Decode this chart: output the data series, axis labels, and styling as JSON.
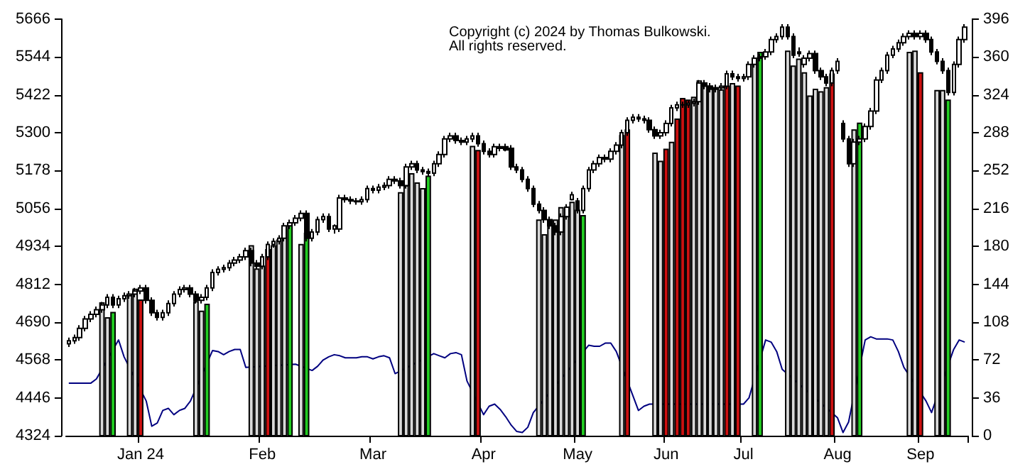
{
  "chart_data": {
    "type": "candlestick",
    "color": "#000000",
    "annotations": [
      "Copyright (c) 2024 by Thomas Bulkowski. All rights reserved."
    ],
    "categories": [
      null,
      null,
      null,
      null,
      null,
      null,
      null,
      null,
      null,
      null,
      null,
      null,
      null,
      "Jan 24",
      null,
      null,
      null,
      null,
      null,
      null,
      null,
      null,
      null,
      null,
      null,
      null,
      null,
      null,
      null,
      null,
      null,
      null,
      null,
      null,
      null,
      "Feb",
      null,
      null,
      null,
      null,
      null,
      null,
      null,
      null,
      null,
      null,
      null,
      null,
      null,
      null,
      null,
      null,
      null,
      null,
      null,
      "Mar",
      null,
      null,
      null,
      null,
      null,
      null,
      null,
      null,
      null,
      null,
      null,
      null,
      null,
      null,
      null,
      null,
      null,
      null,
      null,
      "Apr",
      null,
      null,
      null,
      null,
      null,
      null,
      null,
      null,
      null,
      null,
      null,
      null,
      null,
      null,
      null,
      null,
      "May",
      null,
      null,
      null,
      null,
      null,
      null,
      null,
      null,
      null,
      null,
      null,
      null,
      null,
      null,
      null,
      "Jun",
      null,
      null,
      null,
      null,
      null,
      null,
      null,
      null,
      null,
      null,
      null,
      null,
      null,
      "Jul",
      null,
      null,
      null,
      null,
      null,
      null,
      null,
      null,
      null,
      null,
      null,
      null,
      null,
      null,
      null,
      null,
      "Aug",
      null,
      null,
      null,
      null,
      null,
      null,
      null,
      null,
      null,
      null,
      null,
      null,
      null,
      null,
      "Sep",
      null,
      null,
      null,
      null,
      null,
      null,
      null,
      null
    ],
    "ohlc": [
      [
        4620,
        4640,
        4610,
        4630
      ],
      [
        4630,
        4650,
        4620,
        4640
      ],
      [
        4640,
        4680,
        4630,
        4670
      ],
      [
        4670,
        4710,
        4660,
        4700
      ],
      [
        4700,
        4725,
        4690,
        4715
      ],
      [
        4715,
        4740,
        4705,
        4730
      ],
      [
        4730,
        4755,
        4720,
        4745
      ],
      [
        4745,
        4780,
        4735,
        4770
      ],
      [
        4770,
        4780,
        4735,
        4745
      ],
      [
        4745,
        4775,
        4735,
        4765
      ],
      [
        4765,
        4785,
        4755,
        4775
      ],
      [
        4775,
        4790,
        4765,
        4780
      ],
      [
        4780,
        4800,
        4770,
        4790
      ],
      [
        4790,
        4810,
        4780,
        4800
      ],
      [
        4800,
        4810,
        4750,
        4760
      ],
      [
        4760,
        4770,
        4710,
        4720
      ],
      [
        4720,
        4730,
        4695,
        4705
      ],
      [
        4705,
        4730,
        4695,
        4720
      ],
      [
        4720,
        4760,
        4710,
        4750
      ],
      [
        4750,
        4790,
        4740,
        4780
      ],
      [
        4780,
        4805,
        4770,
        4795
      ],
      [
        4795,
        4810,
        4785,
        4800
      ],
      [
        4800,
        4810,
        4770,
        4780
      ],
      [
        4780,
        4790,
        4750,
        4760
      ],
      [
        4760,
        4780,
        4750,
        4770
      ],
      [
        4770,
        4810,
        4760,
        4800
      ],
      [
        4800,
        4860,
        4790,
        4850
      ],
      [
        4850,
        4870,
        4840,
        4860
      ],
      [
        4860,
        4875,
        4850,
        4865
      ],
      [
        4865,
        4890,
        4855,
        4880
      ],
      [
        4880,
        4900,
        4870,
        4890
      ],
      [
        4890,
        4910,
        4880,
        4900
      ],
      [
        4900,
        4930,
        4890,
        4920
      ],
      [
        4920,
        4930,
        4870,
        4880
      ],
      [
        4880,
        4890,
        4860,
        4870
      ],
      [
        4870,
        4910,
        4860,
        4900
      ],
      [
        4900,
        4950,
        4890,
        4940
      ],
      [
        4940,
        4960,
        4930,
        4950
      ],
      [
        4950,
        4970,
        4940,
        4960
      ],
      [
        4960,
        5010,
        4950,
        5000
      ],
      [
        5000,
        5020,
        4990,
        5010
      ],
      [
        5010,
        5035,
        5000,
        5025
      ],
      [
        5025,
        5050,
        5015,
        5040
      ],
      [
        5040,
        5050,
        4950,
        4960
      ],
      [
        4960,
        4990,
        4950,
        4980
      ],
      [
        4980,
        5030,
        4970,
        5020
      ],
      [
        5020,
        5040,
        5010,
        5030
      ],
      [
        5030,
        5040,
        4980,
        4990
      ],
      [
        4990,
        5005,
        4975,
        5000
      ],
      [
        4990,
        5100,
        4980,
        5090
      ],
      [
        5090,
        5100,
        5075,
        5085
      ],
      [
        5085,
        5095,
        5070,
        5080
      ],
      [
        5080,
        5090,
        5068,
        5078
      ],
      [
        5078,
        5095,
        5068,
        5085
      ],
      [
        5085,
        5130,
        5075,
        5120
      ],
      [
        5120,
        5130,
        5105,
        5115
      ],
      [
        5115,
        5135,
        5105,
        5125
      ],
      [
        5125,
        5140,
        5115,
        5130
      ],
      [
        5130,
        5160,
        5120,
        5150
      ],
      [
        5150,
        5160,
        5135,
        5145
      ],
      [
        5145,
        5155,
        5120,
        5130
      ],
      [
        5130,
        5200,
        5120,
        5190
      ],
      [
        5190,
        5210,
        5180,
        5200
      ],
      [
        5200,
        5210,
        5170,
        5180
      ],
      [
        5180,
        5190,
        5165,
        5175
      ],
      [
        5175,
        5185,
        5160,
        5170
      ],
      [
        5170,
        5210,
        5160,
        5200
      ],
      [
        5200,
        5240,
        5190,
        5230
      ],
      [
        5230,
        5290,
        5220,
        5280
      ],
      [
        5280,
        5300,
        5270,
        5290
      ],
      [
        5290,
        5300,
        5265,
        5275
      ],
      [
        5275,
        5285,
        5260,
        5270
      ],
      [
        5270,
        5290,
        5260,
        5280
      ],
      [
        5280,
        5300,
        5270,
        5290
      ],
      [
        5290,
        5300,
        5255,
        5265
      ],
      [
        5265,
        5275,
        5230,
        5240
      ],
      [
        5240,
        5250,
        5220,
        5230
      ],
      [
        5230,
        5265,
        5220,
        5255
      ],
      [
        5255,
        5265,
        5240,
        5250
      ],
      [
        5255,
        5265,
        5240,
        5245
      ],
      [
        5250,
        5260,
        5180,
        5190
      ],
      [
        5190,
        5200,
        5170,
        5180
      ],
      [
        5180,
        5190,
        5140,
        5150
      ],
      [
        5150,
        5160,
        5110,
        5120
      ],
      [
        5120,
        5130,
        5060,
        5070
      ],
      [
        5070,
        5080,
        5040,
        5050
      ],
      [
        5050,
        5060,
        5010,
        5020
      ],
      [
        5020,
        5030,
        4990,
        5000
      ],
      [
        5000,
        5010,
        4970,
        4980
      ],
      [
        4980,
        5040,
        4970,
        5030
      ],
      [
        5030,
        5070,
        5020,
        5060
      ],
      [
        5085,
        5110,
        5082,
        5100
      ],
      [
        5080,
        5090,
        5040,
        5050
      ],
      [
        5050,
        5130,
        5040,
        5120
      ],
      [
        5120,
        5190,
        5110,
        5180
      ],
      [
        5180,
        5210,
        5170,
        5200
      ],
      [
        5200,
        5230,
        5190,
        5220
      ],
      [
        5220,
        5230,
        5205,
        5215
      ],
      [
        5215,
        5250,
        5205,
        5240
      ],
      [
        5240,
        5270,
        5230,
        5260
      ],
      [
        5260,
        5310,
        5250,
        5300
      ],
      [
        5300,
        5350,
        5290,
        5340
      ],
      [
        5340,
        5360,
        5330,
        5350
      ],
      [
        5350,
        5360,
        5335,
        5345
      ],
      [
        5345,
        5355,
        5330,
        5340
      ],
      [
        5340,
        5350,
        5300,
        5310
      ],
      [
        5310,
        5320,
        5280,
        5290
      ],
      [
        5290,
        5310,
        5280,
        5300
      ],
      [
        5300,
        5340,
        5290,
        5330
      ],
      [
        5330,
        5390,
        5320,
        5380
      ],
      [
        5380,
        5400,
        5370,
        5390
      ],
      [
        5390,
        5400,
        5380,
        5390
      ],
      [
        5390,
        5405,
        5380,
        5395
      ],
      [
        5395,
        5410,
        5385,
        5400
      ],
      [
        5400,
        5470,
        5390,
        5460
      ],
      [
        5460,
        5470,
        5440,
        5450
      ],
      [
        5450,
        5460,
        5430,
        5440
      ],
      [
        5440,
        5455,
        5430,
        5445
      ],
      [
        5445,
        5460,
        5435,
        5450
      ],
      [
        5450,
        5500,
        5440,
        5490
      ],
      [
        5490,
        5500,
        5470,
        5480
      ],
      [
        5480,
        5490,
        5465,
        5475
      ],
      [
        5475,
        5490,
        5465,
        5480
      ],
      [
        5480,
        5530,
        5470,
        5520
      ],
      [
        5520,
        5550,
        5510,
        5540
      ],
      [
        5540,
        5555,
        5530,
        5545
      ],
      [
        5545,
        5570,
        5535,
        5560
      ],
      [
        5560,
        5610,
        5550,
        5600
      ],
      [
        5600,
        5620,
        5590,
        5610
      ],
      [
        5610,
        5650,
        5600,
        5640
      ],
      [
        5640,
        5650,
        5600,
        5610
      ],
      [
        5610,
        5620,
        5540,
        5550
      ],
      [
        5560,
        5575,
        5545,
        5555
      ],
      [
        5520,
        5550,
        5510,
        5540
      ],
      [
        5540,
        5565,
        5530,
        5555
      ],
      [
        5555,
        5565,
        5490,
        5500
      ],
      [
        5500,
        5510,
        5470,
        5480
      ],
      [
        5480,
        5490,
        5450,
        5460
      ],
      [
        5460,
        5510,
        5450,
        5500
      ],
      [
        5500,
        5540,
        5490,
        5530
      ],
      [
        5330,
        5340,
        5270,
        5280
      ],
      [
        5280,
        5290,
        5190,
        5200
      ],
      [
        5200,
        5280,
        5190,
        5270
      ],
      [
        5270,
        5290,
        5260,
        5280
      ],
      [
        5280,
        5330,
        5270,
        5320
      ],
      [
        5320,
        5380,
        5310,
        5370
      ],
      [
        5370,
        5480,
        5360,
        5470
      ],
      [
        5470,
        5510,
        5460,
        5500
      ],
      [
        5500,
        5560,
        5490,
        5550
      ],
      [
        5550,
        5580,
        5540,
        5570
      ],
      [
        5570,
        5600,
        5560,
        5590
      ],
      [
        5590,
        5620,
        5580,
        5610
      ],
      [
        5610,
        5630,
        5600,
        5620
      ],
      [
        5620,
        5630,
        5600,
        5610
      ],
      [
        5610,
        5630,
        5600,
        5620
      ],
      [
        5620,
        5630,
        5590,
        5600
      ],
      [
        5600,
        5610,
        5550,
        5560
      ],
      [
        5560,
        5570,
        5520,
        5530
      ],
      [
        5530,
        5540,
        5490,
        5500
      ],
      [
        5500,
        5510,
        5420,
        5430
      ],
      [
        5430,
        5530,
        5420,
        5520
      ],
      [
        5520,
        5610,
        5510,
        5600
      ],
      [
        5600,
        5650,
        5590,
        5640
      ]
    ],
    "series": [
      {
        "type": "bar",
        "values": [
          null,
          null,
          null,
          null,
          null,
          null,
          4754,
          4706,
          4723,
          null,
          null,
          4780,
          4798,
          4763,
          null,
          null,
          null,
          null,
          null,
          null,
          null,
          null,
          null,
          4758,
          4727,
          4749,
          null,
          null,
          null,
          null,
          null,
          null,
          null,
          4938,
          4863,
          4872,
          4925,
          4938,
          4956,
          4990,
          5008,
          null,
          4942,
          4978,
          null,
          null,
          null,
          null,
          null,
          null,
          null,
          null,
          null,
          null,
          null,
          null,
          null,
          null,
          null,
          null,
          5109,
          5131,
          5170,
          5140,
          5122,
          5162,
          null,
          null,
          null,
          null,
          null,
          null,
          null,
          5258,
          5245,
          null,
          null,
          null,
          null,
          null,
          null,
          null,
          null,
          null,
          null,
          5021,
          4973,
          5008,
          5021,
          5061,
          5035,
          5078,
          5052,
          5035,
          null,
          null,
          null,
          null,
          null,
          null,
          5293,
          5311,
          null,
          null,
          null,
          null,
          5236,
          5210,
          5249,
          5271,
          5346,
          5412,
          5407,
          5416,
          5469,
          5456,
          5452,
          5447,
          5440,
          5452,
          5460,
          5452,
          null,
          null,
          5526,
          5561,
          null,
          null,
          null,
          null,
          5565,
          5517,
          5539,
          5495,
          5420,
          5442,
          5434,
          5447,
          5491,
          null,
          null,
          null,
          5311,
          5333,
          null,
          null,
          null,
          null,
          null,
          null,
          null,
          null,
          5561,
          5565,
          5495,
          null,
          null,
          5438,
          5438,
          5407,
          null,
          null,
          null
        ],
        "colors": [
          null,
          null,
          null,
          null,
          null,
          null,
          "#d9d9d9",
          "#d9d9d9",
          "#22cc22",
          null,
          null,
          "#d9d9d9",
          "#d9d9d9",
          "#cc1111",
          null,
          null,
          null,
          null,
          null,
          null,
          null,
          null,
          null,
          "#d9d9d9",
          "#d9d9d9",
          "#22cc22",
          null,
          null,
          null,
          null,
          null,
          null,
          null,
          "#d9d9d9",
          "#d9d9d9",
          "#d9d9d9",
          "#cc1111",
          "#d9d9d9",
          "#d9d9d9",
          "#d9d9d9",
          "#22cc22",
          null,
          "#d9d9d9",
          "#22cc22",
          null,
          null,
          null,
          null,
          null,
          null,
          null,
          null,
          null,
          null,
          null,
          null,
          null,
          null,
          null,
          null,
          "#d9d9d9",
          "#d9d9d9",
          "#d9d9d9",
          "#d9d9d9",
          "#d9d9d9",
          "#22cc22",
          null,
          null,
          null,
          null,
          null,
          null,
          null,
          "#d9d9d9",
          "#cc1111",
          null,
          null,
          null,
          null,
          null,
          null,
          null,
          null,
          null,
          null,
          "#d9d9d9",
          "#d9d9d9",
          "#d9d9d9",
          "#d9d9d9",
          "#d9d9d9",
          "#d9d9d9",
          "#d9d9d9",
          "#d9d9d9",
          "#22cc22",
          null,
          null,
          null,
          null,
          null,
          null,
          "#d9d9d9",
          "#cc1111",
          null,
          null,
          null,
          null,
          "#d9d9d9",
          "#d9d9d9",
          "#cc1111",
          "#d9d9d9",
          "#cc1111",
          "#cc1111",
          "#cc1111",
          "#d9d9d9",
          "#d9d9d9",
          "#d9d9d9",
          "#d9d9d9",
          "#d9d9d9",
          "#d9d9d9",
          "#cc1111",
          "#d9d9d9",
          "#cc1111",
          null,
          null,
          "#d9d9d9",
          "#22cc22",
          null,
          null,
          null,
          null,
          "#d9d9d9",
          "#d9d9d9",
          "#d9d9d9",
          "#d9d9d9",
          "#d9d9d9",
          "#d9d9d9",
          "#d9d9d9",
          "#d9d9d9",
          "#cc1111",
          null,
          null,
          null,
          "#d9d9d9",
          "#22cc22",
          null,
          null,
          null,
          null,
          null,
          null,
          null,
          null,
          "#d9d9d9",
          "#d9d9d9",
          "#cc1111",
          null,
          null,
          "#d9d9d9",
          "#d9d9d9",
          "#22cc22",
          null,
          null,
          null
        ]
      },
      {
        "type": "line",
        "axis": "y2",
        "color": "#000080",
        "values": [
          50,
          50,
          50,
          50,
          50,
          54,
          null,
          null,
          null,
          91,
          75,
          null,
          null,
          null,
          33,
          9,
          12,
          24,
          26,
          20,
          24,
          26,
          33,
          null,
          null,
          null,
          81,
          80,
          77,
          80,
          82,
          82,
          65,
          null,
          null,
          null,
          null,
          null,
          null,
          null,
          null,
          68,
          null,
          null,
          62,
          66,
          72,
          75,
          77,
          76,
          74,
          74,
          74,
          75,
          75,
          73,
          75,
          76,
          74,
          59,
          null,
          null,
          null,
          null,
          null,
          null,
          78,
          76,
          74,
          78,
          79,
          77,
          52,
          null,
          null,
          20,
          28,
          30,
          25,
          18,
          10,
          4,
          3,
          8,
          22,
          null,
          null,
          null,
          null,
          null,
          null,
          null,
          null,
          null,
          86,
          85,
          85,
          88,
          88,
          80,
          null,
          null,
          38,
          24,
          28,
          30,
          null,
          null,
          null,
          null,
          null,
          null,
          null,
          null,
          null,
          null,
          null,
          null,
          null,
          null,
          null,
          null,
          30,
          36,
          null,
          null,
          91,
          89,
          80,
          63,
          null,
          null,
          null,
          null,
          null,
          null,
          null,
          null,
          null,
          17,
          3,
          13,
          null,
          null,
          91,
          94,
          92,
          92,
          92,
          91,
          80,
          65,
          null,
          null,
          null,
          33,
          22,
          null,
          null,
          null,
          82,
          91,
          89
        ]
      }
    ],
    "ylim": [
      4324,
      5666
    ],
    "yticks": [
      4324,
      4446,
      4568,
      4690,
      4812,
      4934,
      5056,
      5178,
      5300,
      5422,
      5544,
      5666
    ],
    "y2lim": [
      0,
      396
    ],
    "y2ticks": [
      0,
      36,
      72,
      108,
      144,
      180,
      216,
      252,
      288,
      324,
      360,
      396
    ],
    "grid": false
  }
}
